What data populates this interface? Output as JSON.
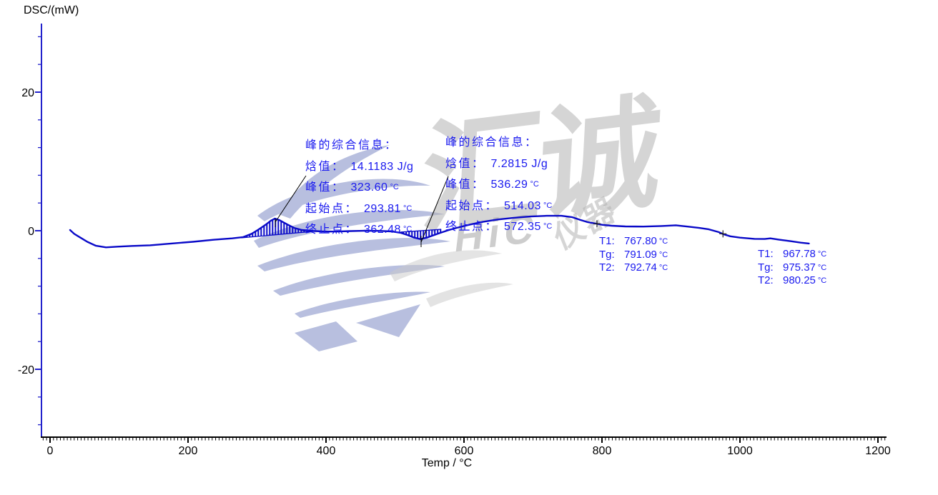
{
  "page": {
    "ylabel": "DSC/(mW)",
    "xlabel": "Temp / °C"
  },
  "watermark": {
    "text_main": "汇诚",
    "text_latin": "HiC",
    "text_sub": "仪器"
  },
  "annotations": {
    "peak1": {
      "title": "峰的综合信息：",
      "rows": [
        {
          "label": "焓值：",
          "value": "14.1183 J/g",
          "unit": ""
        },
        {
          "label": "峰值：",
          "value": "323.60",
          "unit": "°C"
        },
        {
          "label": "起始点：",
          "value": "293.81",
          "unit": "°C"
        },
        {
          "label": "终止点：",
          "value": "362.48",
          "unit": "°C"
        }
      ]
    },
    "peak2": {
      "title": "峰的综合信息：",
      "rows": [
        {
          "label": "焓值：",
          "value": "7.2815 J/g",
          "unit": ""
        },
        {
          "label": "峰值：",
          "value": "536.29",
          "unit": "°C"
        },
        {
          "label": "起始点：",
          "value": "514.03",
          "unit": "°C"
        },
        {
          "label": "终止点：",
          "value": "572.35",
          "unit": "°C"
        }
      ]
    },
    "tg1": {
      "rows": [
        {
          "label": "T1:",
          "value": "767.80",
          "unit": "°C"
        },
        {
          "label": "Tg:",
          "value": "791.09",
          "unit": "°C"
        },
        {
          "label": "T2:",
          "value": "792.74",
          "unit": "°C"
        }
      ]
    },
    "tg2": {
      "rows": [
        {
          "label": "T1:",
          "value": "967.78",
          "unit": "°C"
        },
        {
          "label": "Tg:",
          "value": "975.37",
          "unit": "°C"
        },
        {
          "label": "T2:",
          "value": "980.25",
          "unit": "°C"
        }
      ]
    }
  },
  "colors": {
    "curve": "#0a0ac8",
    "annotation_text": "#1a1aef",
    "axis_y": "#2222cc",
    "axis_x": "#000000",
    "tick_label": "#000000",
    "watermark_blue": "#a9b2d8",
    "watermark_gray": "#c6c6c6",
    "leader_line": "#000000"
  },
  "chart_data": {
    "type": "line",
    "title": "",
    "xlabel": "Temp / °C",
    "ylabel": "DSC/(mW)",
    "xlim": [
      0,
      1200
    ],
    "ylim": [
      -30,
      30
    ],
    "x_ticks": [
      0,
      200,
      400,
      600,
      800,
      1000,
      1200
    ],
    "y_ticks": [
      20,
      0,
      -20
    ],
    "x_minor_step": 5,
    "y_minor_step": 4,
    "grid": false,
    "legend": false,
    "series": [
      {
        "name": "DSC",
        "points": [
          [
            29,
            0.1
          ],
          [
            35,
            -0.45
          ],
          [
            44,
            -1.0
          ],
          [
            54,
            -1.6
          ],
          [
            66,
            -2.15
          ],
          [
            81,
            -2.4
          ],
          [
            98,
            -2.3
          ],
          [
            119,
            -2.2
          ],
          [
            145,
            -2.1
          ],
          [
            176,
            -1.85
          ],
          [
            207,
            -1.6
          ],
          [
            238,
            -1.3
          ],
          [
            264,
            -1.1
          ],
          [
            280,
            -0.92
          ],
          [
            292,
            -0.45
          ],
          [
            302,
            0.15
          ],
          [
            313,
            0.9
          ],
          [
            320,
            1.45
          ],
          [
            326,
            1.75
          ],
          [
            333,
            1.5
          ],
          [
            344,
            0.9
          ],
          [
            354,
            0.4
          ],
          [
            365,
            0.1
          ],
          [
            377,
            0.0
          ],
          [
            394,
            -0.1
          ],
          [
            414,
            -0.12
          ],
          [
            435,
            -0.05
          ],
          [
            456,
            0.0
          ],
          [
            477,
            -0.02
          ],
          [
            495,
            -0.1
          ],
          [
            508,
            -0.3
          ],
          [
            518,
            -0.62
          ],
          [
            528,
            -1.0
          ],
          [
            537,
            -1.22
          ],
          [
            546,
            -1.0
          ],
          [
            555,
            -0.68
          ],
          [
            566,
            -0.3
          ],
          [
            578,
            0.1
          ],
          [
            593,
            0.5
          ],
          [
            609,
            0.9
          ],
          [
            628,
            1.3
          ],
          [
            649,
            1.62
          ],
          [
            671,
            1.85
          ],
          [
            696,
            2.05
          ],
          [
            720,
            2.15
          ],
          [
            741,
            2.15
          ],
          [
            757,
            1.95
          ],
          [
            769,
            1.55
          ],
          [
            779,
            1.25
          ],
          [
            791,
            1.03
          ],
          [
            801,
            0.85
          ],
          [
            814,
            0.72
          ],
          [
            834,
            0.62
          ],
          [
            860,
            0.6
          ],
          [
            886,
            0.68
          ],
          [
            907,
            0.78
          ],
          [
            924,
            0.6
          ],
          [
            941,
            0.4
          ],
          [
            955,
            0.2
          ],
          [
            969,
            -0.2
          ],
          [
            976,
            -0.5
          ],
          [
            986,
            -0.8
          ],
          [
            1000,
            -1.0
          ],
          [
            1021,
            -1.18
          ],
          [
            1036,
            -1.2
          ],
          [
            1044,
            -1.1
          ],
          [
            1057,
            -1.3
          ],
          [
            1073,
            -1.5
          ],
          [
            1088,
            -1.72
          ],
          [
            1100,
            -1.85
          ]
        ]
      }
    ],
    "peaks": [
      {
        "enthalpy_J_per_g": 14.1183,
        "peak_C": 323.6,
        "onset_C": 293.81,
        "end_C": 362.48,
        "hatch": {
          "t0": 277,
          "t1": 387,
          "b0": -1.03,
          "b1": -0.05
        }
      },
      {
        "enthalpy_J_per_g": 7.2815,
        "peak_C": 536.29,
        "onset_C": 514.03,
        "end_C": 572.35,
        "hatch": {
          "t0": 508,
          "t1": 567,
          "b0": -0.2,
          "b1": 0.2
        }
      }
    ],
    "glass_transitions": [
      {
        "T1_C": 767.8,
        "Tg_C": 791.09,
        "T2_C": 792.74
      },
      {
        "T1_C": 967.78,
        "Tg_C": 975.37,
        "T2_C": 980.25
      }
    ],
    "markers": [
      {
        "t": 792.74,
        "v": 1.0
      },
      {
        "t": 975.37,
        "v": -0.45
      }
    ]
  }
}
